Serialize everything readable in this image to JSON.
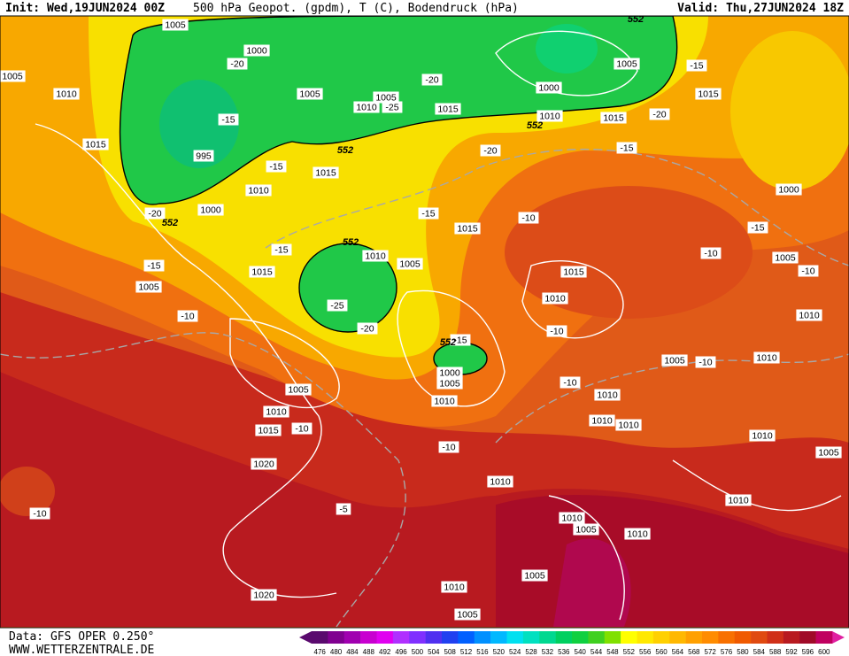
{
  "header": {
    "init": "Init: Wed,19JUN2024 00Z",
    "title": "500 hPa Geopot. (gpdm), T (C), Bodendruck (hPa)",
    "valid": "Valid: Thu,27JUN2024 18Z"
  },
  "footer": {
    "source": "Data: GFS OPER 0.250°",
    "website": "WWW.WETTERZENTRALE.DE"
  },
  "colorbar": {
    "ticks": [
      476,
      480,
      484,
      488,
      492,
      496,
      500,
      504,
      508,
      512,
      516,
      520,
      524,
      528,
      532,
      536,
      540,
      544,
      548,
      552,
      556,
      560,
      564,
      568,
      572,
      576,
      580,
      584,
      588,
      592,
      596,
      600
    ],
    "colors": [
      "#5a0a6e",
      "#800090",
      "#a000b0",
      "#c800d0",
      "#e000f0",
      "#b030ff",
      "#8030ff",
      "#5030f0",
      "#2040f0",
      "#0060ff",
      "#0090ff",
      "#00b8ff",
      "#00e0f0",
      "#00e0c0",
      "#00d890",
      "#00d060",
      "#10d040",
      "#40d020",
      "#80e000",
      "#ffff00",
      "#ffe800",
      "#ffd000",
      "#ffb800",
      "#ffa000",
      "#ff8c00",
      "#f87000",
      "#f05a00",
      "#e04a10",
      "#d03018",
      "#b81a20",
      "#a00a28",
      "#c00060"
    ]
  },
  "isobar_labels": [
    1005,
    1000,
    1010,
    1005,
    1005,
    1010,
    1015,
    995,
    1015,
    1015,
    1010,
    1000,
    1010,
    1005,
    1015,
    1005,
    1005,
    1010,
    1015,
    1020,
    1000,
    1005,
    1010,
    1010,
    1020,
    1010,
    1005,
    1005,
    1010,
    1005,
    1010,
    1010,
    1010,
    1010,
    1010,
    1010,
    1015,
    1015,
    1015,
    1010,
    1000,
    1005,
    1015,
    1000,
    1005,
    1010,
    1005,
    1010,
    1010,
    1005,
    1005
  ],
  "temperature_labels": [
    -20,
    -25,
    -20,
    -15,
    -15,
    -20,
    -15,
    -15,
    -25,
    -20,
    -10,
    -10,
    -15,
    -10,
    -10,
    -5,
    -10,
    -10,
    -10,
    -15,
    -20,
    -15,
    -15,
    -20,
    -15,
    -10,
    -10,
    -10
  ],
  "geopotential_labels": [
    552,
    552,
    552,
    552,
    552,
    552
  ]
}
